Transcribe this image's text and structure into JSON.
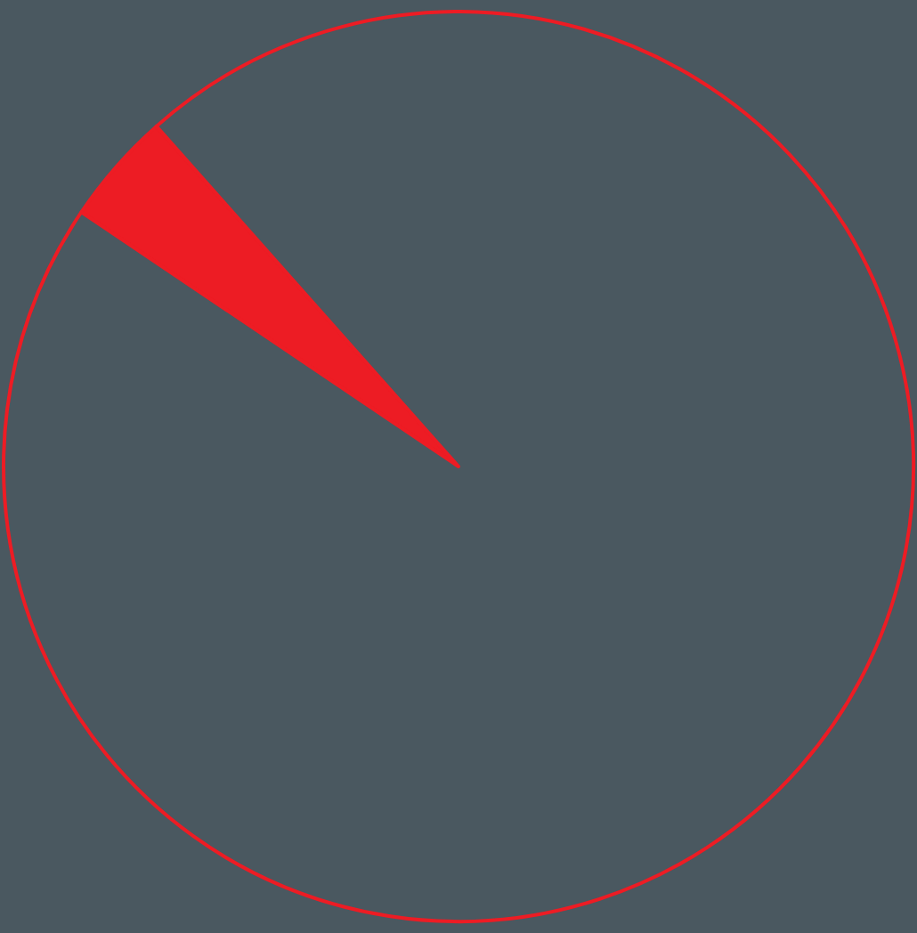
{
  "chart_data": {
    "type": "pie",
    "categories": [
      null,
      null
    ],
    "values": [
      4,
      96
    ],
    "colors": [
      "#ed1c24",
      "#4a5860"
    ]
  }
}
